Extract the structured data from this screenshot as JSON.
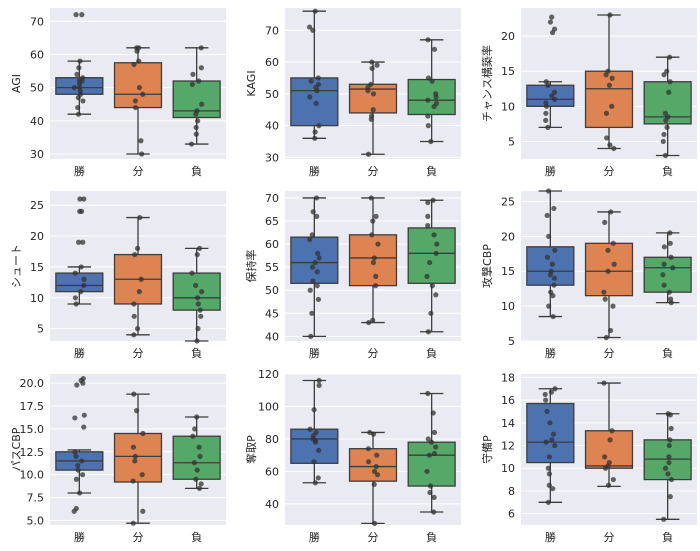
{
  "chart_data": [
    {
      "type": "box",
      "ylabel": "AGI",
      "ylim": [
        28.5,
        74
      ],
      "yticks": [
        30,
        40,
        50,
        60,
        70
      ],
      "categories": [
        "勝",
        "分",
        "負"
      ],
      "colors": [
        "#4c72b0",
        "#dd8452",
        "#55a868"
      ],
      "boxes": [
        {
          "whislo": 42,
          "q1": 48,
          "med": 50,
          "q3": 53,
          "whishi": 58,
          "points": [
            72,
            72,
            58,
            56,
            54,
            53,
            52,
            52,
            51,
            50,
            50,
            49,
            48,
            47,
            46,
            44,
            42
          ]
        },
        {
          "whislo": 30,
          "q1": 44,
          "med": 48,
          "q3": 57.5,
          "whishi": 62,
          "points": [
            62,
            62,
            61,
            58,
            57,
            50,
            48,
            46,
            44,
            34,
            30
          ]
        },
        {
          "whislo": 33,
          "q1": 41,
          "med": 43,
          "q3": 52,
          "whishi": 62,
          "points": [
            62,
            56,
            54,
            52,
            51,
            45,
            43,
            42,
            40,
            38,
            36,
            33
          ]
        }
      ]
    },
    {
      "type": "box",
      "ylabel": "KAGI",
      "ylim": [
        29.5,
        77
      ],
      "yticks": [
        30,
        40,
        50,
        60,
        70
      ],
      "categories": [
        "勝",
        "分",
        "負"
      ],
      "colors": [
        "#4c72b0",
        "#dd8452",
        "#55a868"
      ],
      "boxes": [
        {
          "whislo": 36,
          "q1": 40,
          "med": 51,
          "q3": 55,
          "whishi": 76,
          "points": [
            76,
            71,
            70,
            55,
            54,
            53,
            52,
            51,
            49,
            47,
            40,
            38,
            36
          ]
        },
        {
          "whislo": 31,
          "q1": 44,
          "med": 51.5,
          "q3": 53,
          "whishi": 60,
          "points": [
            60,
            59,
            58,
            53,
            52,
            51,
            50,
            45,
            43,
            42,
            31
          ]
        },
        {
          "whislo": 35,
          "q1": 43.5,
          "med": 48,
          "q3": 54.5,
          "whishi": 67,
          "points": [
            67,
            64,
            55,
            54,
            50,
            49,
            48,
            47,
            46,
            43,
            40,
            35
          ]
        }
      ]
    },
    {
      "type": "box",
      "ylabel": "チャンス構築率",
      "ylim": [
        2.5,
        24
      ],
      "yticks": [
        5,
        10,
        15,
        20
      ],
      "categories": [
        "勝",
        "分",
        "負"
      ],
      "colors": [
        "#4c72b0",
        "#dd8452",
        "#55a868"
      ],
      "boxes": [
        {
          "whislo": 7,
          "q1": 10,
          "med": 11,
          "q3": 13,
          "whishi": 13.5,
          "points": [
            22.7,
            22,
            21,
            20.5,
            13.5,
            13,
            12,
            11.5,
            11,
            10.5,
            10,
            9,
            8,
            7
          ]
        },
        {
          "whislo": 4,
          "q1": 7,
          "med": 12.5,
          "q3": 15,
          "whishi": 23,
          "points": [
            23,
            15,
            14.5,
            14,
            13,
            10,
            9,
            5.5,
            4.5,
            4
          ]
        },
        {
          "whislo": 3,
          "q1": 7.5,
          "med": 8.5,
          "q3": 13.5,
          "whishi": 17,
          "points": [
            17,
            15,
            14.5,
            13.5,
            12,
            9,
            8.5,
            8,
            7,
            6,
            5,
            3
          ]
        }
      ]
    },
    {
      "type": "box",
      "ylabel": "シュート",
      "ylim": [
        3,
        27.3
      ],
      "yticks": [
        5,
        10,
        15,
        20,
        25
      ],
      "categories": [
        "勝",
        "分",
        "負"
      ],
      "colors": [
        "#4c72b0",
        "#dd8452",
        "#55a868"
      ],
      "boxes": [
        {
          "whislo": 9,
          "q1": 11,
          "med": 12,
          "q3": 14,
          "whishi": 15,
          "points": [
            26,
            26,
            24,
            24,
            19,
            19,
            15,
            14,
            13,
            12,
            11,
            10,
            9
          ]
        },
        {
          "whislo": 4,
          "q1": 9,
          "med": 13,
          "q3": 17,
          "whishi": 23,
          "points": [
            23,
            18,
            17,
            13,
            11,
            9,
            7,
            5,
            4
          ]
        },
        {
          "whislo": 3,
          "q1": 8,
          "med": 10,
          "q3": 14,
          "whishi": 18,
          "points": [
            18,
            17,
            14,
            12,
            11,
            10,
            9,
            8,
            7,
            5,
            3
          ]
        }
      ]
    },
    {
      "type": "box",
      "ylabel": "保持率",
      "ylim": [
        39,
        71.5
      ],
      "yticks": [
        40,
        45,
        50,
        55,
        60,
        65,
        70
      ],
      "categories": [
        "勝",
        "分",
        "負"
      ],
      "colors": [
        "#4c72b0",
        "#dd8452",
        "#55a868"
      ],
      "boxes": [
        {
          "whislo": 40,
          "q1": 51.5,
          "med": 56,
          "q3": 61.5,
          "whishi": 70,
          "points": [
            70,
            67,
            66,
            62,
            61,
            58,
            57,
            56,
            55,
            54,
            52,
            51,
            50,
            48,
            45,
            40
          ]
        },
        {
          "whislo": 43,
          "q1": 51,
          "med": 57,
          "q3": 62,
          "whishi": 70,
          "points": [
            70,
            66,
            65,
            62,
            60,
            57,
            56,
            53,
            51,
            43.5,
            43
          ]
        },
        {
          "whislo": 41,
          "q1": 51.5,
          "med": 58,
          "q3": 63.5,
          "whishi": 69.5,
          "points": [
            69.5,
            69,
            66,
            64,
            62,
            60,
            58,
            56,
            53,
            51,
            49,
            45,
            41
          ]
        }
      ]
    },
    {
      "type": "box",
      "ylabel": "攻撃CBP",
      "ylim": [
        5,
        26.5
      ],
      "yticks": [
        5,
        10,
        15,
        20,
        25
      ],
      "categories": [
        "勝",
        "分",
        "負"
      ],
      "colors": [
        "#4c72b0",
        "#dd8452",
        "#55a868"
      ],
      "boxes": [
        {
          "whislo": 8.5,
          "q1": 13,
          "med": 15,
          "q3": 18.5,
          "whishi": 26.5,
          "points": [
            26.5,
            24,
            23,
            20,
            18,
            17,
            16,
            15,
            14.5,
            14,
            13,
            12,
            11.5,
            10,
            8.5
          ]
        },
        {
          "whislo": 5.5,
          "q1": 11.5,
          "med": 15,
          "q3": 19,
          "whishi": 23.5,
          "points": [
            23.5,
            22,
            19,
            18,
            16,
            15,
            12,
            11,
            10,
            6.5,
            5.5
          ]
        },
        {
          "whislo": 10.5,
          "q1": 12,
          "med": 15.5,
          "q3": 17,
          "whishi": 20.5,
          "points": [
            20.5,
            19,
            18.5,
            17,
            16,
            15.5,
            14.5,
            13,
            12,
            11,
            10.5
          ]
        }
      ]
    },
    {
      "type": "box",
      "ylabel": "パスCBP",
      "ylim": [
        4.5,
        21
      ],
      "yticks": [
        5.0,
        7.5,
        10.0,
        12.5,
        15.0,
        17.5,
        20.0
      ],
      "categories": [
        "勝",
        "分",
        "負"
      ],
      "colors": [
        "#4c72b0",
        "#dd8452",
        "#55a868"
      ],
      "boxes": [
        {
          "whislo": 8,
          "q1": 10.5,
          "med": 11.5,
          "q3": 12.5,
          "whishi": 12.7,
          "points": [
            20.5,
            20.3,
            20,
            19.8,
            16.5,
            16.2,
            15.2,
            12.5,
            12,
            11.5,
            11,
            10.5,
            10,
            9.5,
            8,
            6.3,
            6
          ]
        },
        {
          "whislo": 4.7,
          "q1": 9.2,
          "med": 12,
          "q3": 14.5,
          "whishi": 18.8,
          "points": [
            18.8,
            17,
            14.5,
            13,
            12,
            11.5,
            10,
            9.3,
            6,
            4.7
          ]
        },
        {
          "whislo": 8.5,
          "q1": 9.5,
          "med": 11.3,
          "q3": 14.2,
          "whishi": 16.3,
          "points": [
            16.3,
            15,
            14.2,
            13,
            12,
            11.3,
            10.5,
            9.5,
            9,
            8.5
          ]
        }
      ]
    },
    {
      "type": "box",
      "ylabel": "奪取P",
      "ylim": [
        27,
        120
      ],
      "yticks": [
        40,
        60,
        80,
        100,
        120
      ],
      "categories": [
        "勝",
        "分",
        "負"
      ],
      "colors": [
        "#4c72b0",
        "#dd8452",
        "#55a868"
      ],
      "boxes": [
        {
          "whislo": 53,
          "q1": 65,
          "med": 80,
          "q3": 86,
          "whishi": 116,
          "points": [
            116,
            113,
            98,
            86,
            84,
            82,
            80,
            79,
            78,
            73,
            66,
            56,
            53
          ]
        },
        {
          "whislo": 28,
          "q1": 54,
          "med": 63,
          "q3": 74,
          "whishi": 84,
          "points": [
            84,
            83,
            74,
            70,
            66,
            63,
            60,
            58,
            52,
            28
          ]
        },
        {
          "whislo": 35,
          "q1": 51,
          "med": 70,
          "q3": 78,
          "whishi": 108,
          "points": [
            108,
            96,
            84,
            80,
            78,
            75,
            71,
            70,
            60,
            51,
            47,
            44,
            35
          ]
        }
      ]
    },
    {
      "type": "box",
      "ylabel": "守備P",
      "ylim": [
        5,
        18.3
      ],
      "yticks": [
        6,
        8,
        10,
        12,
        14,
        16,
        18
      ],
      "categories": [
        "勝",
        "分",
        "負"
      ],
      "colors": [
        "#4c72b0",
        "#dd8452",
        "#55a868"
      ],
      "boxes": [
        {
          "whislo": 7,
          "q1": 10.5,
          "med": 12.3,
          "q3": 15.7,
          "whishi": 17,
          "points": [
            17,
            16.7,
            16.5,
            16,
            15,
            14,
            13,
            12.5,
            12.3,
            12,
            11,
            10,
            9.5,
            8.5,
            8.2,
            7
          ]
        },
        {
          "whislo": 8.4,
          "q1": 10,
          "med": 10.2,
          "q3": 13.3,
          "whishi": 17.5,
          "points": [
            17.5,
            13.3,
            12.5,
            11,
            10.5,
            10.2,
            10,
            9,
            8.5
          ]
        },
        {
          "whislo": 5.5,
          "q1": 9,
          "med": 10.8,
          "q3": 12.5,
          "whishi": 14.8,
          "points": [
            14.8,
            14.7,
            13.5,
            12.5,
            12,
            11,
            10.5,
            10,
            9.5,
            9,
            7.5,
            5.5
          ]
        }
      ]
    }
  ]
}
